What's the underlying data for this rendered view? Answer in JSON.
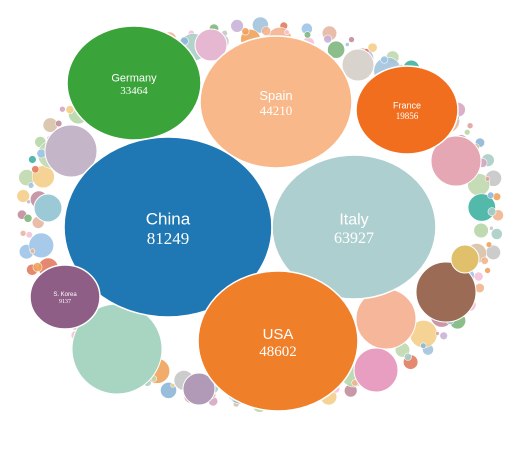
{
  "chart_data": {
    "type": "bubble",
    "title": "",
    "items": [
      {
        "label": "China",
        "value": 81249,
        "color": "#1f77b4"
      },
      {
        "label": "Italy",
        "value": 63927,
        "color": "#aecfd0"
      },
      {
        "label": "USA",
        "value": 48602,
        "color": "#f07f2a"
      },
      {
        "label": "Spain",
        "value": 44210,
        "color": "#f9b88a"
      },
      {
        "label": "Germany",
        "value": 33464,
        "color": "#3aa33a"
      },
      {
        "label": "France",
        "value": 19856,
        "color": "#f26e1f"
      },
      {
        "label": "S. Korea",
        "value": 9137,
        "color": "#8e5e86"
      }
    ]
  }
}
